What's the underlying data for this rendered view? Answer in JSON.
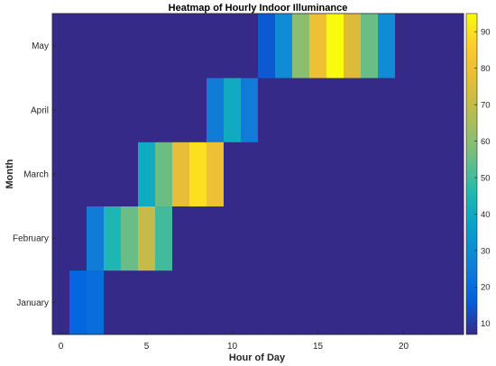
{
  "chart_data": {
    "type": "heatmap",
    "title": "Heatmap of Hourly Indoor Illuminance",
    "xlabel": "Hour of Day",
    "ylabel": "Month",
    "x": [
      0,
      1,
      2,
      3,
      4,
      5,
      6,
      7,
      8,
      9,
      10,
      11,
      12,
      13,
      14,
      15,
      16,
      17,
      18,
      19,
      20,
      21,
      22,
      23
    ],
    "x_ticks": [
      0,
      5,
      10,
      15,
      20
    ],
    "categories": [
      "January",
      "February",
      "March",
      "April",
      "May"
    ],
    "values": [
      [
        7,
        18,
        20,
        7,
        7,
        7,
        7,
        7,
        7,
        7,
        7,
        7,
        7,
        7,
        7,
        7,
        7,
        7,
        7,
        7,
        7,
        7,
        7,
        7
      ],
      [
        7,
        7,
        25,
        45,
        55,
        70,
        50,
        7,
        7,
        7,
        7,
        7,
        7,
        7,
        7,
        7,
        7,
        7,
        7,
        7,
        7,
        7,
        7,
        7
      ],
      [
        7,
        7,
        7,
        7,
        7,
        40,
        55,
        78,
        90,
        80,
        7,
        7,
        7,
        7,
        7,
        7,
        7,
        7,
        7,
        7,
        7,
        7,
        7,
        7
      ],
      [
        7,
        7,
        7,
        7,
        7,
        7,
        7,
        7,
        7,
        25,
        40,
        25,
        7,
        7,
        7,
        7,
        7,
        7,
        7,
        7,
        7,
        7,
        7,
        7
      ],
      [
        7,
        7,
        7,
        7,
        7,
        7,
        7,
        7,
        7,
        7,
        7,
        7,
        15,
        30,
        60,
        80,
        95,
        75,
        55,
        30,
        7,
        7,
        7,
        7
      ]
    ],
    "colormap": "parula",
    "clim": [
      7,
      95
    ],
    "colorbar_ticks": [
      10,
      20,
      30,
      40,
      50,
      60,
      70,
      80,
      90
    ],
    "grid": false,
    "colorbar": "right"
  }
}
